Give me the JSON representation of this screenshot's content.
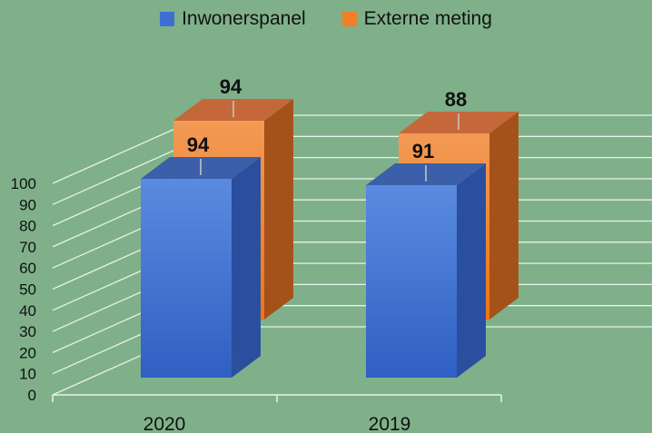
{
  "chart_data": {
    "type": "bar",
    "categories": [
      "2020",
      "2019"
    ],
    "series": [
      {
        "name": "Inwonerspanel",
        "values": [
          94,
          91
        ],
        "color": "#3d6fd2"
      },
      {
        "name": "Externe meting",
        "values": [
          94,
          88
        ],
        "color": "#f07f28"
      }
    ],
    "ylim": [
      0,
      100
    ],
    "yticks": [
      "0",
      "10",
      "20",
      "30",
      "40",
      "50",
      "60",
      "70",
      "80",
      "90",
      "100"
    ],
    "data_labels": {
      "2020": [
        "94",
        "94"
      ],
      "2019": [
        "91",
        "88"
      ]
    },
    "grid": true,
    "legend": "top-center",
    "style": "3d-column"
  }
}
